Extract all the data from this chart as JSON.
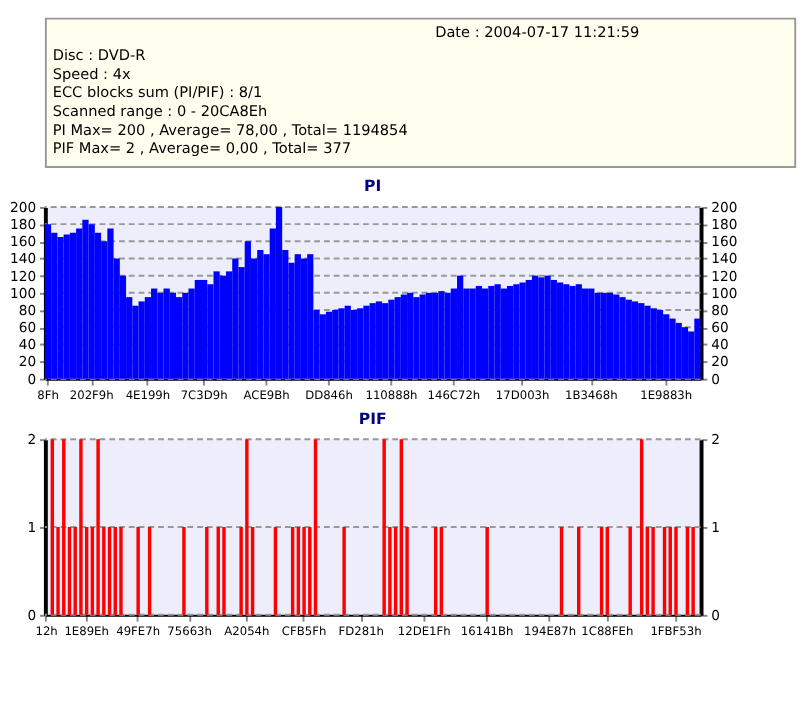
{
  "chart_data": [
    {
      "type": "other",
      "annotations": [
        "Date : 2004-07-17 11:21:59",
        "Disc : DVD-R",
        "Speed : 4x",
        "ECC blocks sum (PI/PIF) : 8/1",
        "Scanned range : 0 - 20CA8Eh",
        "PI Max= 200 , Average= 78,00 , Total= 1194854",
        "PIF Max= 2 , Average= 0,00 , Total= 377"
      ]
    },
    {
      "type": "bar",
      "title": "PI",
      "color": "#0000ff",
      "grid": "y",
      "categories": [
        "8Fh",
        null,
        null,
        null,
        null,
        null,
        null,
        "202F9h",
        null,
        null,
        null,
        null,
        null,
        null,
        null,
        null,
        "4E199h",
        null,
        null,
        null,
        null,
        null,
        null,
        null,
        null,
        "7C3D9h",
        null,
        null,
        null,
        null,
        null,
        null,
        null,
        null,
        null,
        "ACE9Bh",
        null,
        null,
        null,
        null,
        null,
        null,
        null,
        null,
        null,
        "DD846h",
        null,
        null,
        null,
        null,
        null,
        null,
        null,
        null,
        null,
        "110888h",
        null,
        null,
        null,
        null,
        null,
        null,
        null,
        null,
        null,
        "146C72h",
        null,
        null,
        null,
        null,
        null,
        null,
        null,
        null,
        null,
        null,
        "17D003h",
        null,
        null,
        null,
        null,
        null,
        null,
        null,
        null,
        null,
        null,
        "1B3468h",
        null,
        null,
        null,
        null,
        null,
        null,
        null,
        null,
        null,
        null,
        null,
        "1E9883h",
        null,
        null,
        null,
        null,
        null
      ],
      "values": [
        180,
        170,
        165,
        168,
        170,
        175,
        185,
        180,
        170,
        160,
        175,
        140,
        120,
        95,
        85,
        90,
        95,
        105,
        100,
        105,
        100,
        95,
        100,
        105,
        115,
        115,
        110,
        125,
        120,
        125,
        140,
        130,
        160,
        140,
        150,
        145,
        175,
        200,
        150,
        135,
        145,
        140,
        145,
        80,
        75,
        78,
        80,
        82,
        85,
        80,
        82,
        85,
        88,
        90,
        88,
        92,
        95,
        98,
        100,
        95,
        98,
        100,
        100,
        102,
        100,
        105,
        120,
        105,
        105,
        108,
        105,
        108,
        110,
        105,
        108,
        110,
        112,
        115,
        120,
        118,
        120,
        115,
        112,
        110,
        108,
        110,
        105,
        105,
        100,
        100,
        100,
        98,
        95,
        92,
        90,
        88,
        85,
        82,
        80,
        75,
        70,
        65,
        60,
        55,
        70
      ],
      "ylim": [
        0,
        200
      ],
      "yticks": [
        0,
        20,
        40,
        60,
        80,
        100,
        120,
        140,
        160,
        180,
        200
      ],
      "y2lim": [
        0,
        200
      ],
      "y2ticks": [
        0,
        20,
        40,
        60,
        80,
        100,
        120,
        140,
        160,
        180,
        200
      ]
    },
    {
      "type": "bar",
      "title": "PIF",
      "color": "#ff0000",
      "grid": "y",
      "categories": [
        "12h",
        null,
        null,
        null,
        null,
        null,
        null,
        "1E89Eh",
        null,
        null,
        null,
        null,
        null,
        null,
        null,
        null,
        "49FE7h",
        null,
        null,
        null,
        null,
        null,
        null,
        null,
        null,
        "75663h",
        null,
        null,
        null,
        null,
        null,
        null,
        null,
        null,
        null,
        "A2054h",
        null,
        null,
        null,
        null,
        null,
        null,
        null,
        null,
        null,
        "CFB5Fh",
        null,
        null,
        null,
        null,
        null,
        null,
        null,
        null,
        null,
        "FD281h",
        null,
        null,
        null,
        null,
        null,
        null,
        null,
        null,
        null,
        null,
        "12DE1Fh",
        null,
        null,
        null,
        null,
        null,
        null,
        null,
        null,
        null,
        null,
        "16141Bh",
        null,
        null,
        null,
        null,
        null,
        null,
        null,
        null,
        null,
        null,
        "194E87h",
        null,
        null,
        null,
        null,
        null,
        null,
        null,
        null,
        null,
        "1C88FEh",
        null,
        null,
        null,
        null,
        null,
        null,
        null,
        null,
        null,
        null,
        null,
        "1FBF53h",
        null,
        null,
        null,
        null
      ],
      "values": [
        0,
        2,
        1,
        2,
        1,
        1,
        2,
        1,
        1,
        2,
        1,
        1,
        1,
        1,
        0,
        0,
        1,
        0,
        1,
        0,
        0,
        0,
        0,
        0,
        1,
        0,
        0,
        0,
        1,
        0,
        1,
        1,
        0,
        0,
        1,
        2,
        1,
        0,
        0,
        0,
        1,
        0,
        0,
        1,
        1,
        1,
        1,
        2,
        0,
        0,
        0,
        0,
        1,
        0,
        0,
        0,
        0,
        0,
        0,
        2,
        1,
        1,
        2,
        1,
        0,
        0,
        0,
        0,
        1,
        1,
        0,
        0,
        0,
        0,
        0,
        0,
        0,
        1,
        0,
        0,
        0,
        0,
        0,
        0,
        0,
        0,
        0,
        0,
        0,
        0,
        1,
        0,
        0,
        1,
        0,
        0,
        0,
        1,
        1,
        0,
        0,
        0,
        1,
        0,
        2,
        1,
        1,
        0,
        1,
        1,
        1,
        0,
        1,
        1,
        0
      ],
      "ylim": [
        0,
        2
      ],
      "yticks": [
        0,
        1,
        2
      ],
      "y2lim": [
        0,
        2
      ],
      "y2ticks": [
        0,
        1,
        2
      ]
    }
  ]
}
